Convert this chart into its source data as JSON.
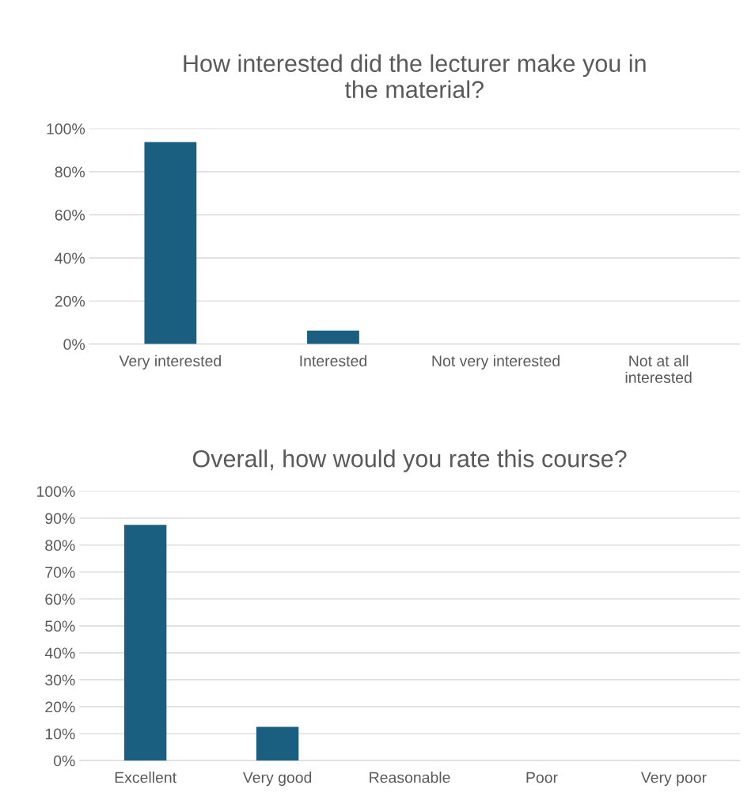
{
  "chart_data": [
    {
      "type": "bar",
      "title": "How interested did the lecturer make you in\nthe material?",
      "categories": [
        "Very interested",
        "Interested",
        "Not very interested",
        "Not at all\ninterested"
      ],
      "values": [
        93.75,
        6.25,
        0,
        0
      ],
      "color": "#1a5e80",
      "ylim": [
        0,
        100
      ],
      "yticks": [
        {
          "value": 0,
          "label": "0%"
        },
        {
          "value": 20,
          "label": "20%"
        },
        {
          "value": 40,
          "label": "40%"
        },
        {
          "value": 60,
          "label": "60%"
        },
        {
          "value": 80,
          "label": "80%"
        },
        {
          "value": 100,
          "label": "100%"
        }
      ],
      "grid": "y",
      "legend": false
    },
    {
      "type": "bar",
      "title": "Overall, how would you rate this course?",
      "categories": [
        "Excellent",
        "Very good",
        "Reasonable",
        "Poor",
        "Very poor"
      ],
      "values": [
        87.5,
        12.5,
        0,
        0,
        0
      ],
      "color": "#1a5e80",
      "ylim": [
        0,
        100
      ],
      "yticks": [
        {
          "value": 0,
          "label": "0%"
        },
        {
          "value": 10,
          "label": "10%"
        },
        {
          "value": 20,
          "label": "20%"
        },
        {
          "value": 30,
          "label": "30%"
        },
        {
          "value": 40,
          "label": "40%"
        },
        {
          "value": 50,
          "label": "50%"
        },
        {
          "value": 60,
          "label": "60%"
        },
        {
          "value": 70,
          "label": "70%"
        },
        {
          "value": 80,
          "label": "80%"
        },
        {
          "value": 90,
          "label": "90%"
        },
        {
          "value": 100,
          "label": "100%"
        }
      ],
      "grid": "y",
      "legend": false
    }
  ]
}
